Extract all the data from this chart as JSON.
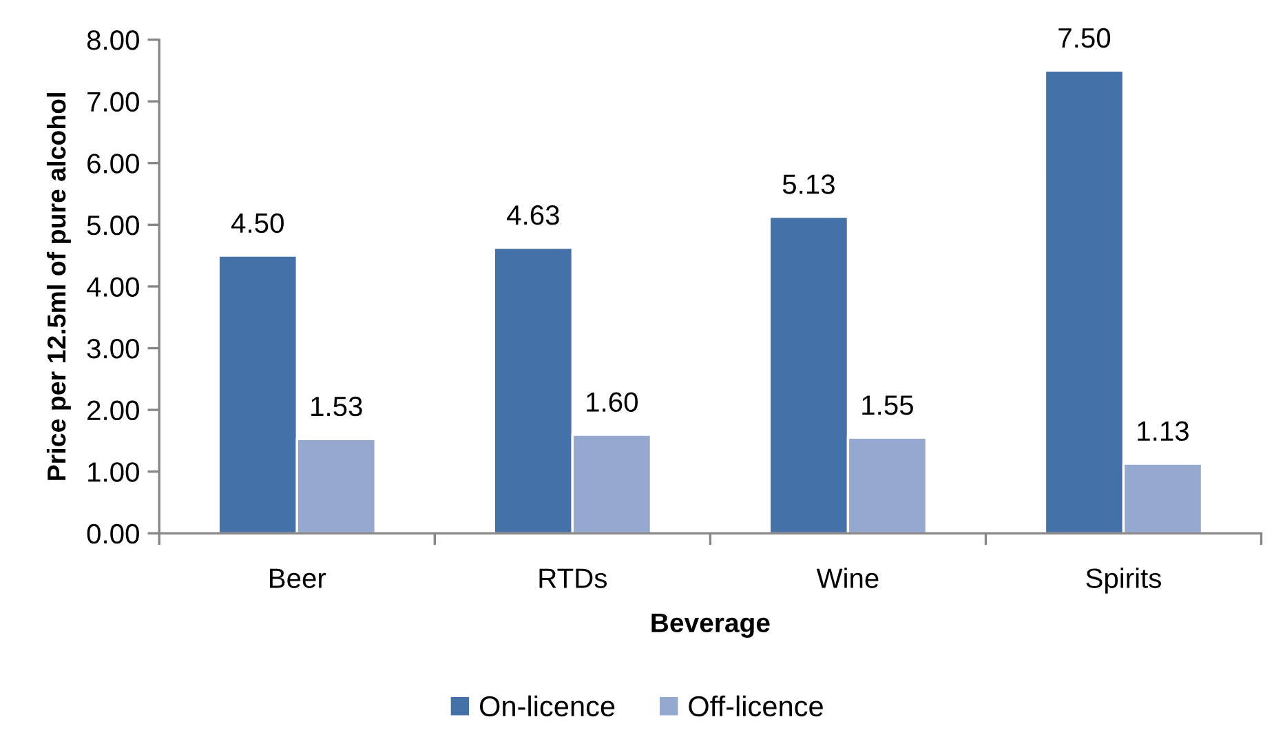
{
  "chart_data": {
    "type": "bar",
    "xlabel": "Beverage",
    "ylabel": "Price per 12.5ml of pure alcohol",
    "categories": [
      "Beer",
      "RTDs",
      "Wine",
      "Spirits"
    ],
    "series": [
      {
        "name": "On-licence",
        "color": "#4472a8",
        "values": [
          4.5,
          4.63,
          5.13,
          7.5
        ],
        "value_labels": [
          "4.50",
          "4.63",
          "5.13",
          "7.50"
        ]
      },
      {
        "name": "Off-licence",
        "color": "#95a9d0",
        "values": [
          1.53,
          1.6,
          1.55,
          1.13
        ],
        "value_labels": [
          "1.53",
          "1.60",
          "1.55",
          "1.13"
        ]
      }
    ],
    "ylim": [
      0,
      8
    ],
    "yticks": [
      {
        "value": 0,
        "label": "0.00"
      },
      {
        "value": 1,
        "label": "1.00"
      },
      {
        "value": 2,
        "label": "2.00"
      },
      {
        "value": 3,
        "label": "3.00"
      },
      {
        "value": 4,
        "label": "4.00"
      },
      {
        "value": 5,
        "label": "5.00"
      },
      {
        "value": 6,
        "label": "6.00"
      },
      {
        "value": 7,
        "label": "7.00"
      },
      {
        "value": 8,
        "label": "8.00"
      }
    ],
    "grid": false,
    "legend": "bottom"
  }
}
